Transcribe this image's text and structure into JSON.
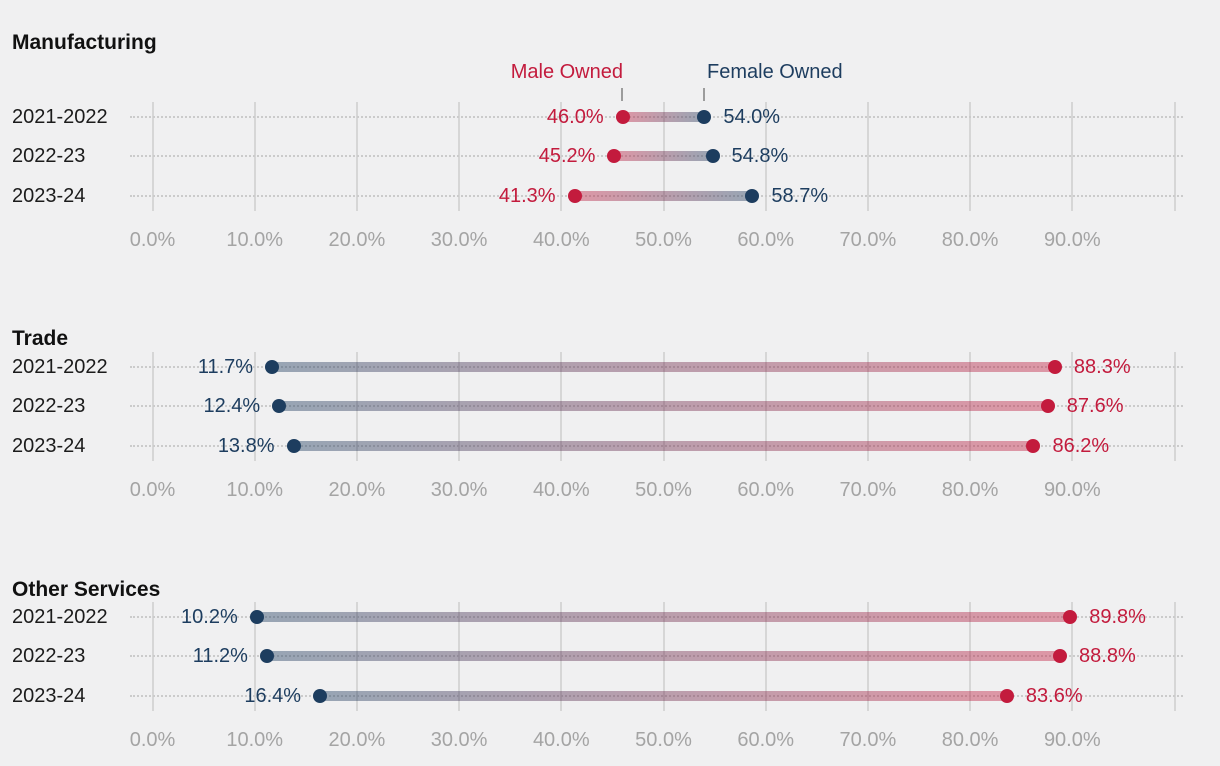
{
  "background": "#f0f0f1",
  "colors": {
    "male": "#c31b3d",
    "female": "#1d3d5f",
    "grid": "#d6d6d6",
    "axis_text": "#a4a4a4",
    "row_dotted": "#cbcbcb",
    "title_text": "#111111",
    "category_text": "#1b1b1b",
    "legend_tick": "#9c9c9c"
  },
  "legend": {
    "male_label": "Male Owned",
    "female_label": "Female Owned"
  },
  "x_axis": {
    "tick_labels": [
      "0.0%",
      "10.0%",
      "20.0%",
      "30.0%",
      "40.0%",
      "50.0%",
      "60.0%",
      "70.0%",
      "80.0%",
      "90.0%"
    ],
    "tick_values": [
      0,
      10,
      20,
      30,
      40,
      50,
      60,
      70,
      80,
      90
    ],
    "range": [
      0,
      100
    ],
    "gridline_values": [
      0,
      10,
      20,
      30,
      40,
      50,
      60,
      70,
      80,
      90,
      100
    ]
  },
  "chart_data": [
    {
      "type": "dumbbell",
      "title": "Manufacturing",
      "categories": [
        "2021-2022",
        "2022-23",
        "2023-24"
      ],
      "xlim": [
        0,
        100
      ],
      "legend_visible": true,
      "series": [
        {
          "name": "Male Owned",
          "color": "#c31b3d",
          "values": [
            46.0,
            45.2,
            41.3
          ],
          "labels": [
            "46.0%",
            "45.2%",
            "41.3%"
          ]
        },
        {
          "name": "Female Owned",
          "color": "#1d3d5f",
          "values": [
            54.0,
            54.8,
            58.7
          ],
          "labels": [
            "54.0%",
            "54.8%",
            "58.7%"
          ]
        }
      ]
    },
    {
      "type": "dumbbell",
      "title": "Trade",
      "categories": [
        "2021-2022",
        "2022-23",
        "2023-24"
      ],
      "xlim": [
        0,
        100
      ],
      "legend_visible": false,
      "series": [
        {
          "name": "Male Owned",
          "color": "#c31b3d",
          "values": [
            88.3,
            87.6,
            86.2
          ],
          "labels": [
            "88.3%",
            "87.6%",
            "86.2%"
          ]
        },
        {
          "name": "Female Owned",
          "color": "#1d3d5f",
          "values": [
            11.7,
            12.4,
            13.8
          ],
          "labels": [
            "11.7%",
            "12.4%",
            "13.8%"
          ]
        }
      ]
    },
    {
      "type": "dumbbell",
      "title": "Other Services",
      "categories": [
        "2021-2022",
        "2022-23",
        "2023-24"
      ],
      "xlim": [
        0,
        100
      ],
      "legend_visible": false,
      "series": [
        {
          "name": "Male Owned",
          "color": "#c31b3d",
          "values": [
            89.8,
            88.8,
            83.6
          ],
          "labels": [
            "89.8%",
            "88.8%",
            "83.6%"
          ]
        },
        {
          "name": "Female Owned",
          "color": "#1d3d5f",
          "values": [
            10.2,
            11.2,
            16.4
          ],
          "labels": [
            "10.2%",
            "11.2%",
            "16.4%"
          ]
        }
      ]
    }
  ]
}
